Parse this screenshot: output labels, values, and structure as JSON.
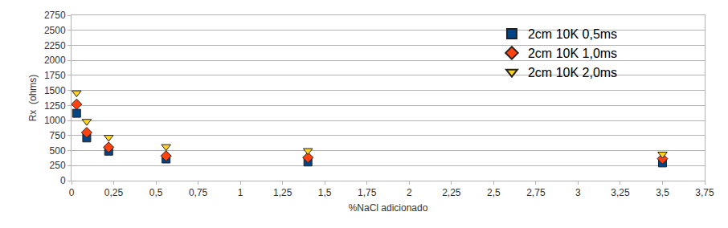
{
  "chart_data": {
    "type": "scatter",
    "x_label": "%NaCl adicionado",
    "y_label": "Rx  (ohms)",
    "x": [
      0.03,
      0.09,
      0.22,
      0.56,
      1.4,
      3.5
    ],
    "series": [
      {
        "name": "2cm 10K 0,5ms",
        "color": "#004586",
        "marker": "square",
        "values": [
          1120,
          710,
          490,
          360,
          310,
          295
        ]
      },
      {
        "name": "2cm 10K 1,0ms",
        "color": "#ff420e",
        "marker": "diamond",
        "values": [
          1270,
          800,
          555,
          410,
          385,
          365
        ]
      },
      {
        "name": "2cm 10K 2,0ms",
        "color": "#ffd320",
        "marker": "triangle-down",
        "values": [
          1460,
          985,
          720,
          565,
          500,
          440
        ]
      }
    ],
    "xlim": [
      0,
      3.75
    ],
    "xticks": [
      0,
      {
        "value": 0.25,
        "label": "0,25"
      },
      {
        "value": 0.5,
        "label": "0,5"
      },
      {
        "value": 0.75,
        "label": "0,75"
      },
      1,
      {
        "value": 1.25,
        "label": "1,25"
      },
      {
        "value": 1.5,
        "label": "1,5"
      },
      {
        "value": 1.75,
        "label": "1,75"
      },
      2,
      {
        "value": 2.25,
        "label": "2,25"
      },
      {
        "value": 2.5,
        "label": "2,5"
      },
      {
        "value": 2.75,
        "label": "2,75"
      },
      3,
      {
        "value": 3.25,
        "label": "3,25"
      },
      {
        "value": 3.5,
        "label": "3,5"
      },
      {
        "value": 3.75,
        "label": "3,75"
      }
    ],
    "ylim": [
      0,
      2750
    ],
    "yticks": [
      0,
      250,
      500,
      750,
      1000,
      1250,
      1500,
      1750,
      2000,
      2250,
      2500,
      2750
    ],
    "grid": true,
    "legend": "top right"
  }
}
